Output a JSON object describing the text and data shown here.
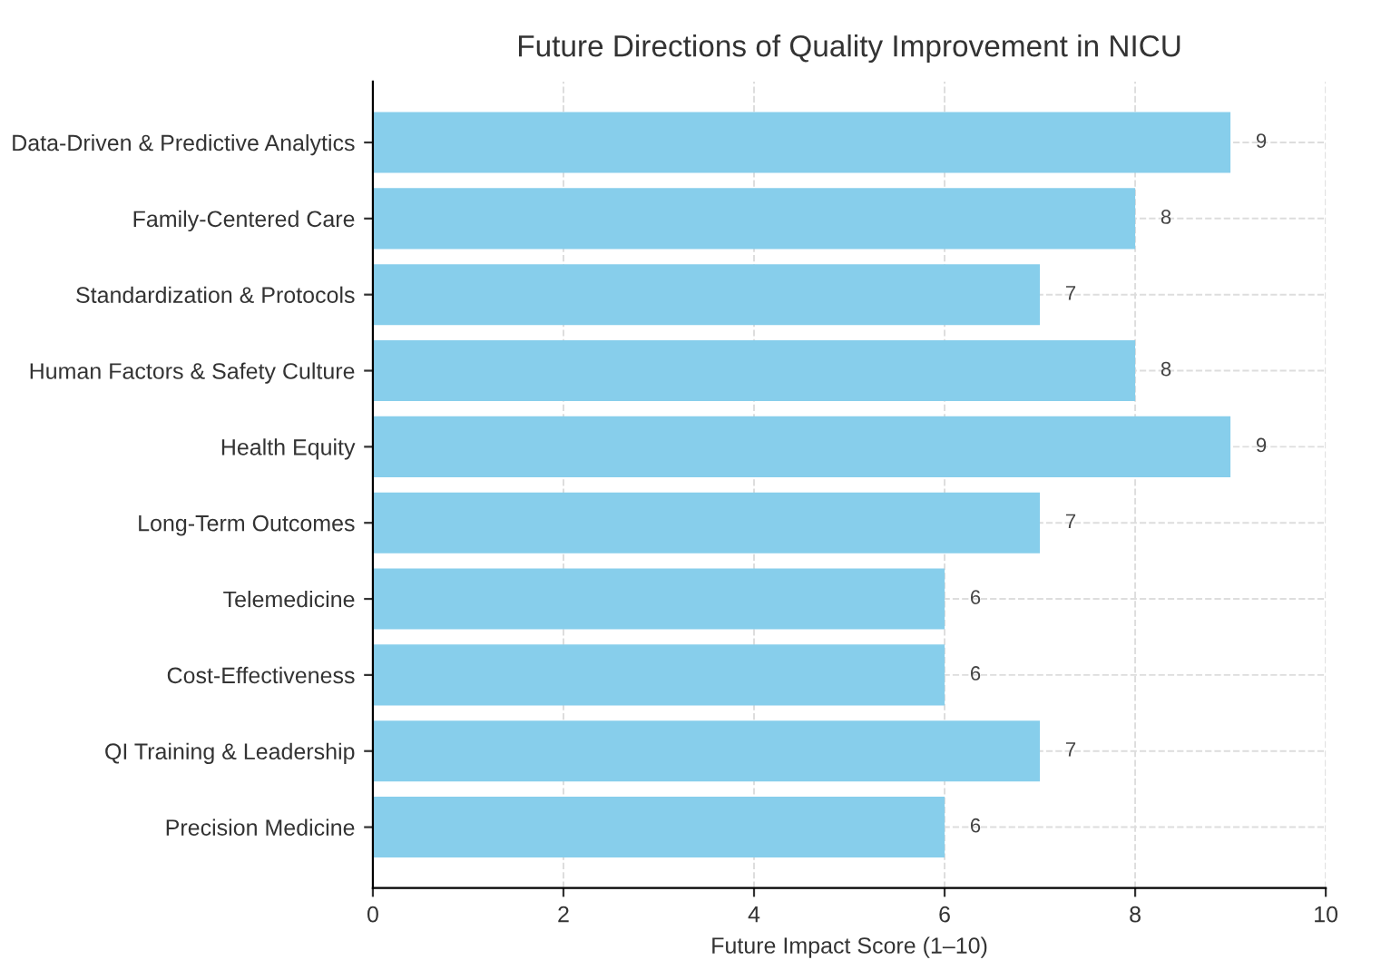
{
  "chart_data": {
    "type": "bar",
    "orientation": "horizontal",
    "title": "Future Directions of Quality Improvement in NICU",
    "xlabel": "Future Impact Score (1–10)",
    "categories": [
      "Data-Driven & Predictive Analytics",
      "Family-Centered Care",
      "Standardization & Protocols",
      "Human Factors & Safety Culture",
      "Health Equity",
      "Long-Term Outcomes",
      "Telemedicine",
      "Cost-Effectiveness",
      "QI Training & Leadership",
      "Precision Medicine"
    ],
    "values": [
      9,
      8,
      7,
      8,
      9,
      7,
      6,
      6,
      7,
      6
    ],
    "color": "#87ceeb",
    "xlim": [
      0,
      10
    ],
    "xticks": [
      0,
      2,
      4,
      6,
      8,
      10
    ],
    "grid": true,
    "data_labels": true
  }
}
